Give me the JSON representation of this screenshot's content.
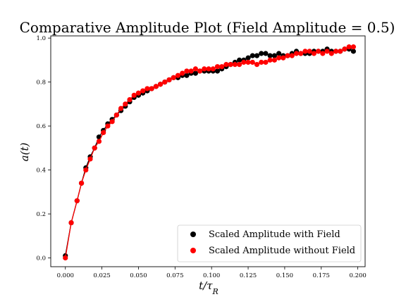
{
  "chart_data": {
    "type": "scatter",
    "title": "Comparative Amplitude Plot (Field Amplitude = 0.5)",
    "xlabel": "t/τR",
    "ylabel": "a(t)",
    "xlim": [
      -0.01,
      0.205
    ],
    "ylim": [
      -0.04,
      1.01
    ],
    "xticks": [
      0.0,
      0.025,
      0.05,
      0.075,
      0.1,
      0.125,
      0.15,
      0.175,
      0.2
    ],
    "xtick_labels": [
      "0.000",
      "0.025",
      "0.050",
      "0.075",
      "0.100",
      "0.125",
      "0.150",
      "0.175",
      "0.200"
    ],
    "yticks": [
      0.0,
      0.2,
      0.4,
      0.6,
      0.8,
      1.0
    ],
    "ytick_labels": [
      "0.0",
      "0.2",
      "0.4",
      "0.6",
      "0.8",
      "1.0"
    ],
    "grid": false,
    "legend_position": "lower-right",
    "series": [
      {
        "name": "Scaled Amplitude with Field",
        "color": "#000000",
        "x": [
          0.0,
          0.004,
          0.008,
          0.011,
          0.014,
          0.017,
          0.02,
          0.023,
          0.026,
          0.029,
          0.032,
          0.035,
          0.038,
          0.041,
          0.044,
          0.047,
          0.05,
          0.053,
          0.056,
          0.059,
          0.062,
          0.065,
          0.068,
          0.071,
          0.074,
          0.077,
          0.08,
          0.083,
          0.086,
          0.089,
          0.092,
          0.095,
          0.098,
          0.101,
          0.104,
          0.107,
          0.11,
          0.113,
          0.116,
          0.119,
          0.122,
          0.125,
          0.128,
          0.131,
          0.134,
          0.137,
          0.14,
          0.143,
          0.146,
          0.149,
          0.152,
          0.155,
          0.158,
          0.161,
          0.164,
          0.167,
          0.17,
          0.173,
          0.176,
          0.179,
          0.182,
          0.185,
          0.188,
          0.191,
          0.194,
          0.197
        ],
        "y": [
          0.01,
          0.16,
          0.26,
          0.34,
          0.41,
          0.46,
          0.5,
          0.55,
          0.58,
          0.61,
          0.63,
          0.65,
          0.67,
          0.69,
          0.71,
          0.73,
          0.74,
          0.75,
          0.76,
          0.77,
          0.78,
          0.79,
          0.8,
          0.81,
          0.82,
          0.82,
          0.83,
          0.83,
          0.84,
          0.84,
          0.85,
          0.85,
          0.85,
          0.85,
          0.85,
          0.86,
          0.87,
          0.88,
          0.89,
          0.9,
          0.9,
          0.91,
          0.92,
          0.92,
          0.93,
          0.93,
          0.92,
          0.92,
          0.93,
          0.92,
          0.92,
          0.93,
          0.94,
          0.93,
          0.93,
          0.93,
          0.94,
          0.94,
          0.94,
          0.95,
          0.94,
          0.94,
          0.94,
          0.95,
          0.95,
          0.94
        ]
      },
      {
        "name": "Scaled Amplitude without Field",
        "color": "#ff0000",
        "x": [
          0.0,
          0.004,
          0.008,
          0.011,
          0.014,
          0.017,
          0.02,
          0.023,
          0.026,
          0.029,
          0.032,
          0.035,
          0.038,
          0.041,
          0.044,
          0.047,
          0.05,
          0.053,
          0.056,
          0.059,
          0.062,
          0.065,
          0.068,
          0.071,
          0.074,
          0.077,
          0.08,
          0.083,
          0.086,
          0.089,
          0.092,
          0.095,
          0.098,
          0.101,
          0.104,
          0.107,
          0.11,
          0.113,
          0.116,
          0.119,
          0.122,
          0.125,
          0.128,
          0.131,
          0.134,
          0.137,
          0.14,
          0.143,
          0.146,
          0.149,
          0.152,
          0.155,
          0.158,
          0.161,
          0.164,
          0.167,
          0.17,
          0.173,
          0.176,
          0.179,
          0.182,
          0.185,
          0.188,
          0.191,
          0.194,
          0.197
        ],
        "y": [
          0.0,
          0.16,
          0.26,
          0.34,
          0.4,
          0.45,
          0.5,
          0.53,
          0.57,
          0.6,
          0.62,
          0.65,
          0.68,
          0.7,
          0.72,
          0.74,
          0.75,
          0.76,
          0.77,
          0.77,
          0.78,
          0.79,
          0.8,
          0.81,
          0.82,
          0.83,
          0.84,
          0.85,
          0.85,
          0.86,
          0.85,
          0.86,
          0.86,
          0.86,
          0.87,
          0.87,
          0.88,
          0.88,
          0.88,
          0.88,
          0.89,
          0.89,
          0.89,
          0.88,
          0.89,
          0.89,
          0.9,
          0.9,
          0.91,
          0.91,
          0.92,
          0.92,
          0.93,
          0.93,
          0.94,
          0.94,
          0.93,
          0.94,
          0.93,
          0.94,
          0.93,
          0.94,
          0.94,
          0.95,
          0.96,
          0.96
        ]
      }
    ]
  }
}
